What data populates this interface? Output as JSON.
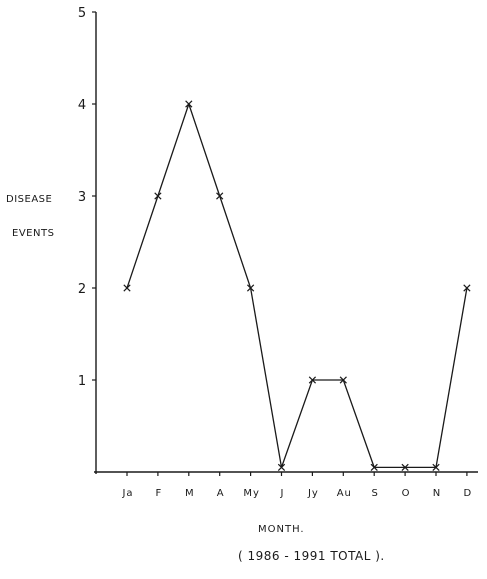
{
  "chart_data": {
    "type": "line",
    "categories": [
      "Ja",
      "F",
      "M",
      "A",
      "My",
      "J",
      "Jy",
      "Au",
      "S",
      "O",
      "N",
      "D"
    ],
    "series": [
      {
        "values": [
          2,
          3,
          4,
          3,
          2,
          0.05,
          1,
          1,
          0.05,
          0.05,
          0.05,
          2
        ]
      }
    ],
    "ylabel_line1": "DISEASE",
    "ylabel_line2": "EVENTS",
    "xlabel": "MONTH.",
    "note": "( 1986 - 1991 TOTAL ).",
    "yticks": [
      1,
      2,
      3,
      4,
      5
    ],
    "ylim": [
      0,
      5
    ],
    "grid": false,
    "marker": "x",
    "line_color": "#1a1a1a"
  }
}
